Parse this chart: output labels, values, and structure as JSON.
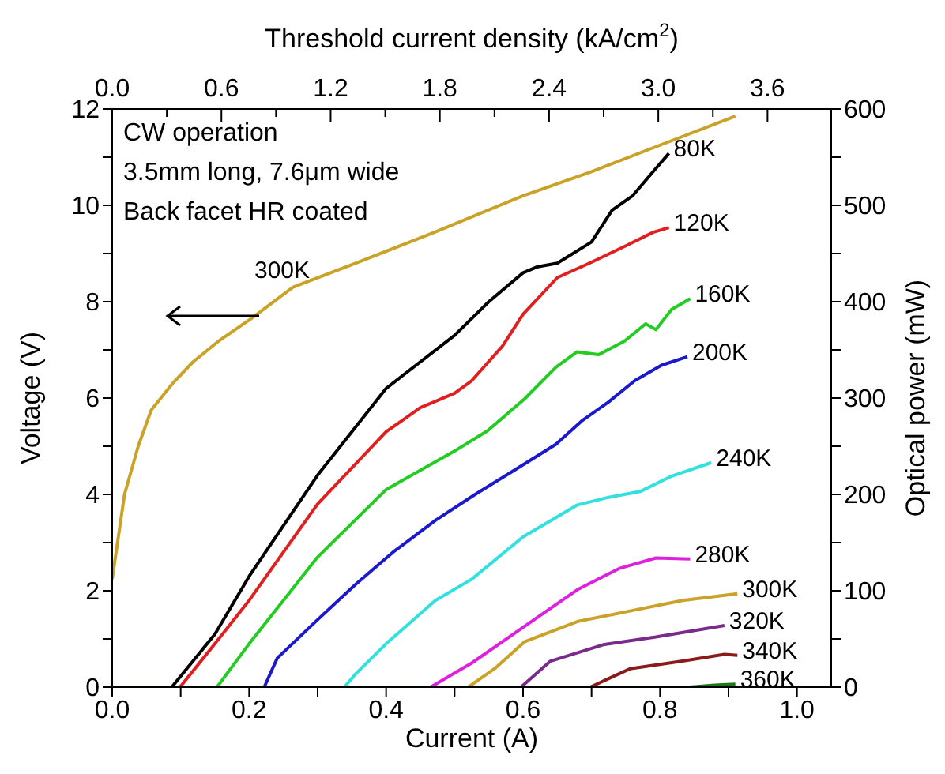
{
  "chart_data": {
    "type": "line",
    "xlabel": "Current (A)",
    "ylabel": "Voltage (V)",
    "y2label": "Optical power (mW)",
    "x2label": "Threshold current density (kA/cm$^{2}$)",
    "annotations": [
      "CW operation",
      "3.5mm long, 7.6μm wide",
      "Back facet HR coated",
      "300K"
    ],
    "xlim": [
      0,
      1.05
    ],
    "xticks": [
      {
        "value": 0,
        "label": "0.0"
      },
      {
        "value": 0.1,
        "label": null
      },
      {
        "value": 0.2,
        "label": "0.2"
      },
      {
        "value": 0.3,
        "label": null
      },
      {
        "value": 0.4,
        "label": "0.4"
      },
      {
        "value": 0.5,
        "label": null
      },
      {
        "value": 0.6,
        "label": "0.6"
      },
      {
        "value": 0.7,
        "label": null
      },
      {
        "value": 0.8,
        "label": "0.8"
      },
      {
        "value": 0.9,
        "label": null
      },
      {
        "value": 1,
        "label": "1.0"
      }
    ],
    "x2lim": [
      0,
      3.95
    ],
    "x2ticks": [
      {
        "value": 0,
        "label": "0.0"
      },
      {
        "value": 0.3,
        "label": null
      },
      {
        "value": 0.6,
        "label": "0.6"
      },
      {
        "value": 0.9,
        "label": null
      },
      {
        "value": 1.2,
        "label": "1.2"
      },
      {
        "value": 1.5,
        "label": null
      },
      {
        "value": 1.8,
        "label": "1.8"
      },
      {
        "value": 2.1,
        "label": null
      },
      {
        "value": 2.4,
        "label": "2.4"
      },
      {
        "value": 2.7,
        "label": null
      },
      {
        "value": 3,
        "label": "3.0"
      },
      {
        "value": 3.3,
        "label": null
      },
      {
        "value": 3.6,
        "label": "3.6"
      }
    ],
    "ylim": [
      0,
      12
    ],
    "yticks": [
      0,
      {
        "value": 1,
        "label": null
      },
      2,
      {
        "value": 3,
        "label": null
      },
      4,
      {
        "value": 5,
        "label": null
      },
      6,
      {
        "value": 7,
        "label": null
      },
      8,
      {
        "value": 9,
        "label": null
      },
      10,
      {
        "value": 11,
        "label": null
      },
      12
    ],
    "y2lim": [
      0,
      600
    ],
    "y2ticks": [
      0,
      {
        "value": 50,
        "label": null
      },
      100,
      {
        "value": 150,
        "label": null
      },
      200,
      {
        "value": 250,
        "label": null
      },
      300,
      {
        "value": 350,
        "label": null
      },
      400,
      {
        "value": 450,
        "label": null
      },
      500,
      {
        "value": 550,
        "label": null
      },
      600
    ],
    "grid": false,
    "legend": false,
    "marker": "none",
    "line_style": "solid",
    "series": [
      {
        "color": "#c9a227",
        "x": [
          0,
          0.018,
          0.038,
          0.057,
          0.088,
          0.118,
          0.157,
          0.203,
          0.264,
          0.356,
          0.472,
          0.6,
          0.7,
          0.8,
          0.91
        ],
        "values": [
          2.24,
          4.0,
          5.0,
          5.75,
          6.3,
          6.75,
          7.2,
          7.65,
          8.3,
          8.8,
          9.45,
          10.2,
          10.7,
          11.25,
          11.85
        ]
      },
      {
        "name": "80K",
        "color": "#000000",
        "axis": "y2",
        "x": [
          0.087,
          0.15,
          0.2,
          0.3,
          0.4,
          0.5,
          0.55,
          0.6,
          0.62,
          0.65,
          0.7,
          0.73,
          0.76,
          0.79,
          0.813
        ],
        "values": [
          0,
          55,
          115,
          220,
          310,
          365,
          400,
          430,
          436,
          440,
          462,
          495,
          510,
          535,
          554
        ]
      },
      {
        "name": "120K",
        "color": "#e02020",
        "axis": "y2",
        "x": [
          0.099,
          0.15,
          0.2,
          0.3,
          0.4,
          0.45,
          0.5,
          0.525,
          0.57,
          0.6,
          0.65,
          0.7,
          0.75,
          0.79,
          0.813
        ],
        "values": [
          0,
          45,
          90,
          190,
          265,
          290,
          305,
          318,
          354,
          387,
          425,
          441,
          458,
          472,
          477
        ]
      },
      {
        "name": "160K",
        "color": "#22cc22",
        "axis": "y2",
        "x": [
          0.153,
          0.2,
          0.3,
          0.4,
          0.5,
          0.548,
          0.602,
          0.648,
          0.679,
          0.71,
          0.748,
          0.779,
          0.794,
          0.817,
          0.844
        ],
        "values": [
          0,
          45,
          135,
          205,
          245,
          266,
          299,
          332,
          348,
          345,
          359,
          377,
          371,
          392,
          403
        ]
      },
      {
        "name": "200K",
        "color": "#1a1acc",
        "axis": "y2",
        "x": [
          0.222,
          0.241,
          0.3,
          0.356,
          0.41,
          0.472,
          0.53,
          0.587,
          0.648,
          0.687,
          0.725,
          0.763,
          0.802,
          0.84
        ],
        "values": [
          0,
          30,
          70,
          107,
          140,
          173,
          200,
          225,
          252,
          277,
          296,
          318,
          334,
          343
        ]
      },
      {
        "name": "240K",
        "color": "#33e0e0",
        "axis": "y2",
        "x": [
          0.339,
          0.356,
          0.4,
          0.472,
          0.525,
          0.6,
          0.679,
          0.725,
          0.771,
          0.817,
          0.875
        ],
        "values": [
          0,
          14,
          45,
          90,
          112,
          156,
          189,
          197,
          203,
          219,
          233
        ]
      },
      {
        "name": "280K",
        "color": "#dd22dd",
        "axis": "y2",
        "x": [
          0.465,
          0.525,
          0.602,
          0.679,
          0.74,
          0.794,
          0.844
        ],
        "values": [
          0,
          25,
          63,
          101,
          123,
          134,
          133
        ]
      },
      {
        "name": "300K",
        "color": "#c9a227",
        "axis": "y2",
        "x": [
          0.52,
          0.56,
          0.602,
          0.679,
          0.756,
          0.833,
          0.913
        ],
        "values": [
          0,
          20,
          47,
          68,
          79,
          90,
          97
        ]
      },
      {
        "name": "320K",
        "color": "#7a2a8a",
        "axis": "y2",
        "x": [
          0.597,
          0.64,
          0.717,
          0.794,
          0.894
        ],
        "values": [
          0,
          27,
          44,
          52,
          64
        ]
      },
      {
        "name": "340K",
        "color": "#8b1a1a",
        "axis": "y2",
        "x": [
          0.698,
          0.756,
          0.833,
          0.894,
          0.913
        ],
        "values": [
          0,
          19,
          27,
          34,
          33
        ]
      },
      {
        "name": "360K",
        "color": "#1a7a1a",
        "axis": "y2",
        "x": [
          0,
          0.843,
          0.88,
          0.91
        ],
        "values": [
          0,
          0,
          2,
          3
        ]
      }
    ]
  }
}
